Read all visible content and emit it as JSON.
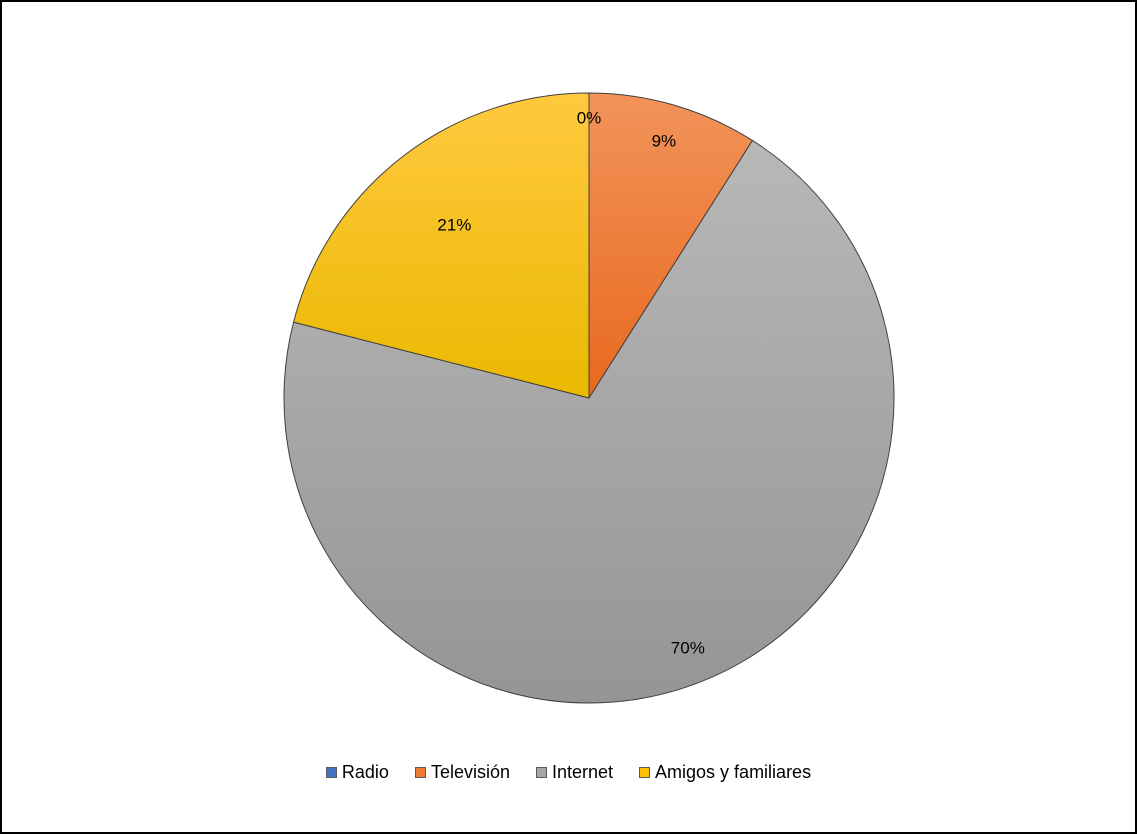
{
  "chart_data": {
    "type": "pie",
    "title": "",
    "categories": [
      "Radio",
      "Televisión",
      "Internet",
      "Amigos y familiares"
    ],
    "values": [
      0,
      9,
      70,
      21
    ],
    "data_labels": [
      "0%",
      "9%",
      "70%",
      "21%"
    ],
    "colors": [
      "#4472C4",
      "#ED7D31",
      "#A5A5A5",
      "#FFC000"
    ],
    "legend_position": "bottom",
    "start_angle": "top, clockwise"
  }
}
